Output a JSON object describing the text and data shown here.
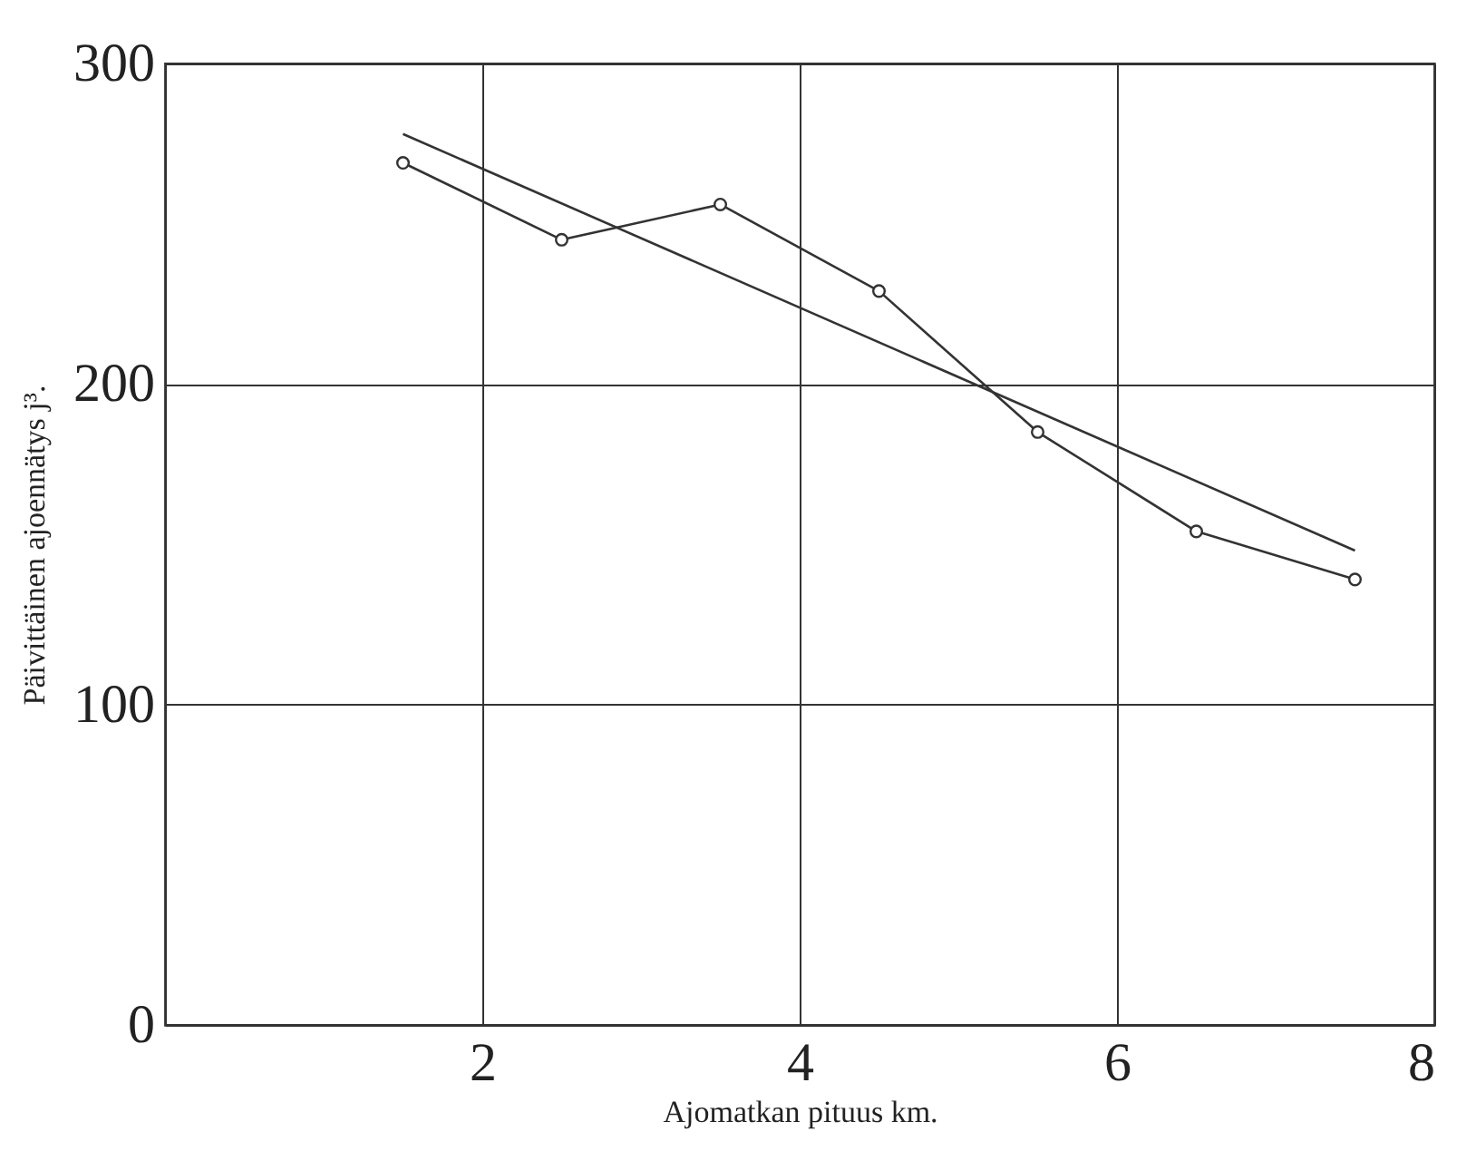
{
  "chart_data": {
    "type": "line",
    "xlabel": "Ajomatkan pituus km.",
    "ylabel": "Päivittäinen ajoennätys j³.",
    "xlim": [
      0,
      8
    ],
    "ylim": [
      0,
      300
    ],
    "xticks": [
      2,
      4,
      6,
      8
    ],
    "yticks": [
      0,
      100,
      200,
      300
    ],
    "grid": true,
    "series": [
      {
        "color": "#333333",
        "marker": "circle",
        "x": [
          1.5,
          2.5,
          3.5,
          4.5,
          5.5,
          6.5,
          7.5
        ],
        "values": [
          269,
          245,
          256,
          229,
          185,
          154,
          139
        ]
      },
      {
        "type": "line",
        "color": "#333333",
        "marker": "none",
        "x": [
          1.5,
          7.5
        ],
        "values": [
          278,
          148
        ]
      }
    ]
  }
}
